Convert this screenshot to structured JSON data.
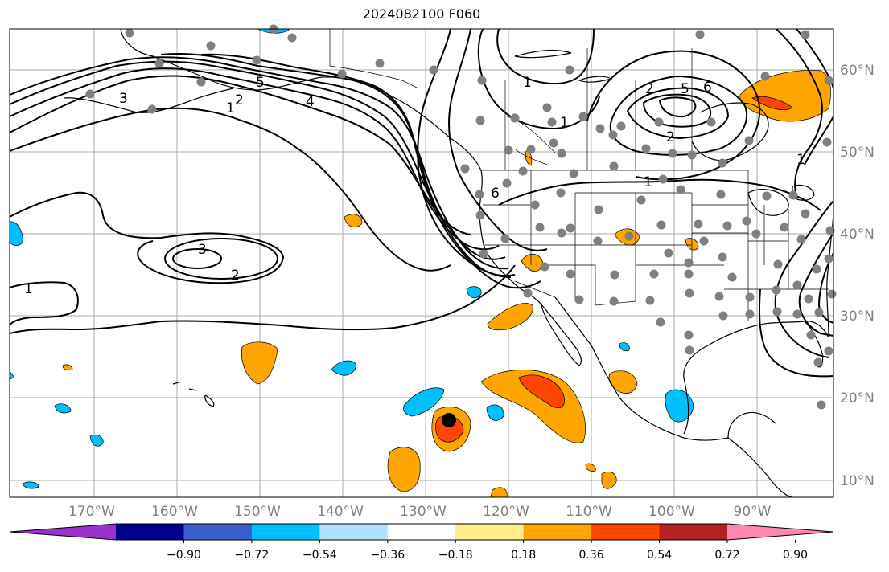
{
  "title": "2024082100 F060",
  "lat_labels": [
    "60°N",
    "50°N",
    "40°N",
    "30°N",
    "20°N",
    "10°N"
  ],
  "lon_labels": [
    "170°W",
    "160°W",
    "150°W",
    "140°W",
    "130°W",
    "120°W",
    "110°W",
    "100°W",
    "90°W"
  ],
  "colorbar": {
    "colors": [
      "#9932cc",
      "#00008b",
      "#3a5fcd",
      "#00bfff",
      "#b0e2ff",
      "#ffffff",
      "#ffec8b",
      "#ffa500",
      "#ff4500",
      "#b22222",
      "#ff86b0"
    ],
    "ticks": [
      "−0.90",
      "−0.72",
      "−0.54",
      "−0.36",
      "−0.18",
      "0.18",
      "0.36",
      "0.54",
      "0.72",
      "0.90"
    ]
  },
  "contour_labels": [
    {
      "name": "contour-label-3-west",
      "text": "3"
    },
    {
      "name": "contour-label-2-west",
      "text": "2"
    },
    {
      "name": "contour-label-1-west",
      "text": "1"
    },
    {
      "name": "contour-label-5-gulf",
      "text": "5"
    },
    {
      "name": "contour-label-4-gulf",
      "text": "4"
    },
    {
      "name": "contour-label-3-pacific",
      "text": "3"
    },
    {
      "name": "contour-label-2-pacific",
      "text": "2"
    },
    {
      "name": "contour-label-1-pacific",
      "text": "1"
    },
    {
      "name": "contour-label-1-canada",
      "text": "1"
    },
    {
      "name": "contour-label-1-canada-b",
      "text": "1"
    },
    {
      "name": "contour-label-2-hudson",
      "text": "2"
    },
    {
      "name": "contour-label-5-hudson",
      "text": "5"
    },
    {
      "name": "contour-label-6-hudson",
      "text": "6"
    },
    {
      "name": "contour-label-2-hudson-b",
      "text": "2"
    },
    {
      "name": "contour-label-1-plains",
      "text": "1"
    },
    {
      "name": "contour-label-1-east",
      "text": "1"
    },
    {
      "name": "contour-label-6-coast",
      "text": "6"
    }
  ],
  "colors": {
    "frame": "#000000",
    "grid": "#a0a0a0",
    "station": "#808080",
    "contour": "#000000"
  }
}
